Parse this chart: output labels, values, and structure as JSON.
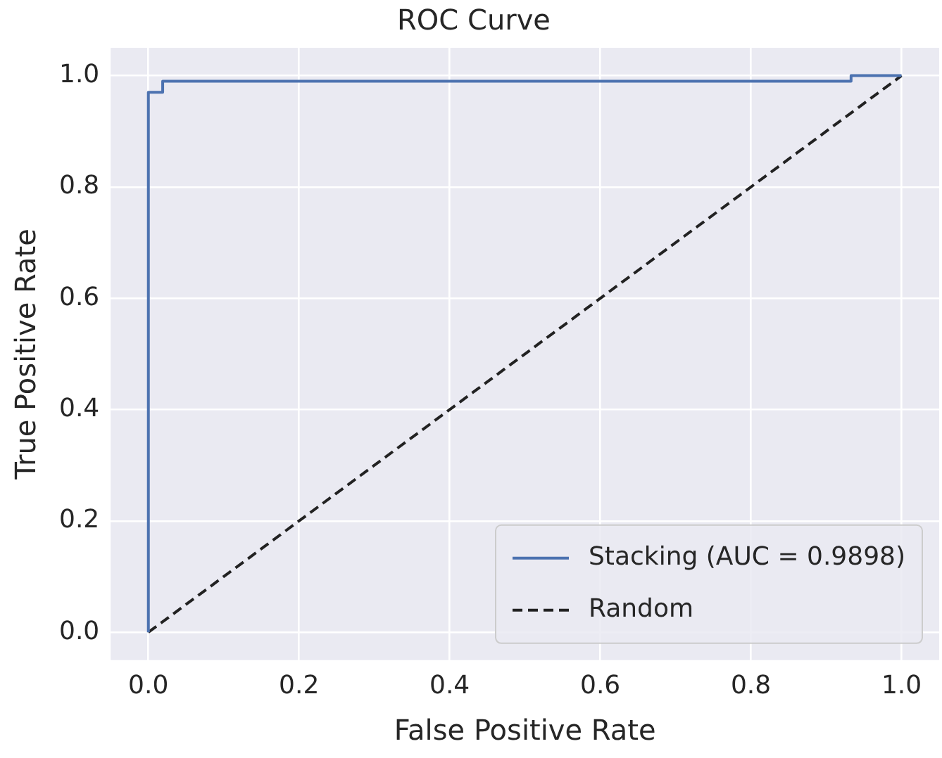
{
  "chart_data": {
    "type": "line",
    "title": "ROC Curve",
    "xlabel": "False Positive Rate",
    "ylabel": "True Positive Rate",
    "series": [
      {
        "name": "Stacking (AUC = 0.9898)",
        "color": "#4c72b0",
        "line_style": "solid",
        "x": [
          0,
          0,
          0.019,
          0.019,
          0.933,
          0.933,
          1
        ],
        "values": [
          0,
          0.97,
          0.97,
          0.99,
          0.99,
          1,
          1
        ]
      },
      {
        "name": "Random",
        "color": "#222222",
        "line_style": "dashed",
        "x": [
          0,
          1
        ],
        "values": [
          0,
          1
        ]
      }
    ],
    "xlim": [
      -0.05,
      1.05
    ],
    "ylim": [
      -0.05,
      1.05
    ],
    "xticks": [
      {
        "value": 0,
        "label": "0.0"
      },
      {
        "value": 0.2,
        "label": "0.2"
      },
      {
        "value": 0.4,
        "label": "0.4"
      },
      {
        "value": 0.6,
        "label": "0.6"
      },
      {
        "value": 0.8,
        "label": "0.8"
      },
      {
        "value": 1,
        "label": "1.0"
      }
    ],
    "yticks": [
      {
        "value": 0,
        "label": "0.0"
      },
      {
        "value": 0.2,
        "label": "0.2"
      },
      {
        "value": 0.4,
        "label": "0.4"
      },
      {
        "value": 0.6,
        "label": "0.6"
      },
      {
        "value": 0.8,
        "label": "0.8"
      },
      {
        "value": 1,
        "label": "1.0"
      }
    ],
    "grid": true,
    "legend": "bottom right",
    "marker": "none"
  }
}
